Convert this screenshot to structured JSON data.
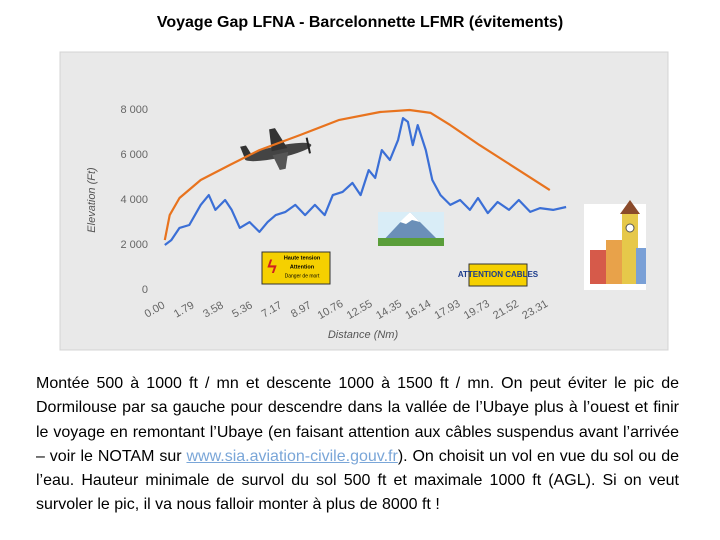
{
  "chart_data": {
    "type": "line",
    "title": "Voyage Gap LFNA - Barcelonnette LFMR (évitements)",
    "y_label": "Elevation (Ft)",
    "x_label": "Distance (Nm)",
    "ylim": [
      0,
      10000
    ],
    "yticks": [
      0,
      {
        "value": 2000,
        "label": "2 000"
      },
      {
        "value": 4000,
        "label": "4 000"
      },
      {
        "value": 6000,
        "label": "6 000"
      },
      {
        "value": 8000,
        "label": "8 000"
      }
    ],
    "xlim": [
      0,
      25.5
    ],
    "xticks": [
      {
        "value": 0,
        "label": "0.00"
      },
      1.79,
      3.58,
      5.36,
      7.17,
      8.97,
      10.76,
      12.55,
      14.35,
      16.14,
      17.93,
      19.73,
      21.52,
      23.31
    ],
    "grid": false,
    "series": [
      {
        "color": "#3b6fd6",
        "x": [
          0.6,
          1.0,
          1.5,
          2.1,
          2.8,
          3.3,
          3.7,
          4.3,
          4.7,
          5.2,
          5.8,
          6.4,
          6.9,
          7.4,
          8.0,
          8.6,
          9.2,
          9.8,
          10.4,
          10.9,
          11.5,
          12.1,
          12.6,
          13.1,
          13.5,
          13.9,
          14.4,
          14.9,
          15.2,
          15.5,
          15.8,
          16.1,
          16.6,
          17.0,
          17.5,
          18.1,
          18.7,
          19.3,
          19.8,
          20.4,
          21.0,
          21.7,
          22.3,
          23.0,
          23.6,
          24.4,
          25.2
        ],
        "values": [
          2000,
          2220,
          2760,
          2890,
          3780,
          4220,
          3560,
          4000,
          3560,
          2760,
          3020,
          2580,
          3020,
          3330,
          3470,
          3780,
          3330,
          3780,
          3330,
          4220,
          4360,
          4760,
          4220,
          5330,
          4980,
          6220,
          5780,
          6670,
          7640,
          7470,
          6440,
          7330,
          6220,
          4890,
          4220,
          3780,
          4000,
          3560,
          4090,
          3420,
          3910,
          3560,
          4000,
          3470,
          3640,
          3560,
          3690
        ]
      },
      {
        "color": "#e8731e",
        "x": [
          0.6,
          0.9,
          1.5,
          2.8,
          4.6,
          6.4,
          8.9,
          11.3,
          13.8,
          15.6,
          16.9,
          18.1,
          19.9,
          21.8,
          24.2
        ],
        "values": [
          2220,
          3330,
          4090,
          4890,
          5560,
          6220,
          6890,
          7560,
          7910,
          8000,
          7870,
          7330,
          6440,
          5560,
          4440
        ]
      }
    ],
    "annotations": [
      "Haute tension",
      "Attention",
      "Danger de mort",
      "ATTENTION CABLES"
    ]
  },
  "paragraph": {
    "before": "Montée 500 à 1000 ft / mn et descente 1000 à 1500 ft / mn. On peut éviter le pic de Dormilouse par sa gauche pour descendre dans la vallée de l’Ubaye plus à l’ouest et finir le voyage en remontant l’Ubaye (en faisant attention aux câbles suspendus avant l’arrivée – voir le NOTAM sur ",
    "link": "www.sia.aviation-civile.gouv.fr",
    "after": "). On choisit un vol en vue du sol ou de l’eau. Hauteur minimale de survol du sol 500 ft et maximale 1000 ft (AGL). Si on veut survoler le pic, il va nous falloir monter à plus de 8000 ft !"
  }
}
